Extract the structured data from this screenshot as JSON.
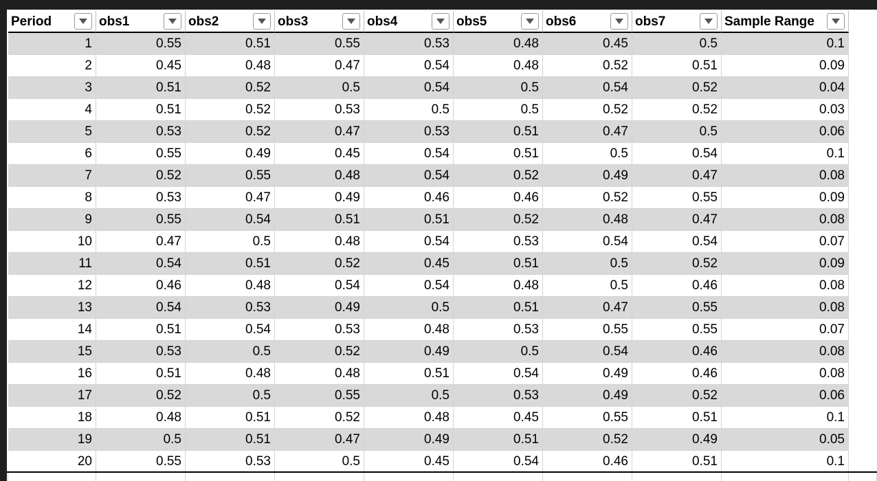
{
  "table": {
    "columns": [
      "Period",
      "obs1",
      "obs2",
      "obs3",
      "obs4",
      "obs5",
      "obs6",
      "obs7",
      "Sample Range"
    ],
    "rows": [
      [
        1,
        0.55,
        0.51,
        0.55,
        0.53,
        0.48,
        0.45,
        0.5,
        0.1
      ],
      [
        2,
        0.45,
        0.48,
        0.47,
        0.54,
        0.48,
        0.52,
        0.51,
        0.09
      ],
      [
        3,
        0.51,
        0.52,
        0.5,
        0.54,
        0.5,
        0.54,
        0.52,
        0.04
      ],
      [
        4,
        0.51,
        0.52,
        0.53,
        0.5,
        0.5,
        0.52,
        0.52,
        0.03
      ],
      [
        5,
        0.53,
        0.52,
        0.47,
        0.53,
        0.51,
        0.47,
        0.5,
        0.06
      ],
      [
        6,
        0.55,
        0.49,
        0.45,
        0.54,
        0.51,
        0.5,
        0.54,
        0.1
      ],
      [
        7,
        0.52,
        0.55,
        0.48,
        0.54,
        0.52,
        0.49,
        0.47,
        0.08
      ],
      [
        8,
        0.53,
        0.47,
        0.49,
        0.46,
        0.46,
        0.52,
        0.55,
        0.09
      ],
      [
        9,
        0.55,
        0.54,
        0.51,
        0.51,
        0.52,
        0.48,
        0.47,
        0.08
      ],
      [
        10,
        0.47,
        0.5,
        0.48,
        0.54,
        0.53,
        0.54,
        0.54,
        0.07
      ],
      [
        11,
        0.54,
        0.51,
        0.52,
        0.45,
        0.51,
        0.5,
        0.52,
        0.09
      ],
      [
        12,
        0.46,
        0.48,
        0.54,
        0.54,
        0.48,
        0.5,
        0.46,
        0.08
      ],
      [
        13,
        0.54,
        0.53,
        0.49,
        0.5,
        0.51,
        0.47,
        0.55,
        0.08
      ],
      [
        14,
        0.51,
        0.54,
        0.53,
        0.48,
        0.53,
        0.55,
        0.55,
        0.07
      ],
      [
        15,
        0.53,
        0.5,
        0.52,
        0.49,
        0.5,
        0.54,
        0.46,
        0.08
      ],
      [
        16,
        0.51,
        0.48,
        0.48,
        0.51,
        0.54,
        0.49,
        0.46,
        0.08
      ],
      [
        17,
        0.52,
        0.5,
        0.55,
        0.5,
        0.53,
        0.49,
        0.52,
        0.06
      ],
      [
        18,
        0.48,
        0.51,
        0.52,
        0.48,
        0.45,
        0.55,
        0.51,
        0.1
      ],
      [
        19,
        0.5,
        0.51,
        0.47,
        0.49,
        0.51,
        0.52,
        0.49,
        0.05
      ],
      [
        20,
        0.55,
        0.53,
        0.5,
        0.45,
        0.54,
        0.46,
        0.51,
        0.1
      ]
    ]
  }
}
